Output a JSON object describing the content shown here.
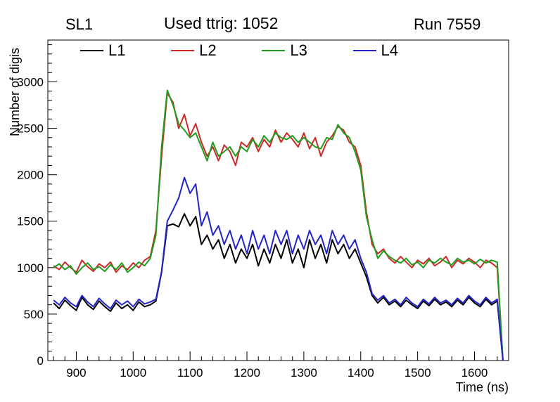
{
  "header": {
    "left_title": "SL1",
    "center_title": "Used ttrig: 1052",
    "right_title": "Run 7559"
  },
  "axes": {
    "x_label": "Time (ns)",
    "y_label": "Number of digis",
    "xticks": [
      900,
      1000,
      1100,
      1200,
      1300,
      1400,
      1500,
      1600
    ],
    "yticks": [
      0,
      500,
      1000,
      1500,
      2000,
      2500,
      3000
    ],
    "xlim": [
      850,
      1660
    ],
    "ylim": [
      0,
      3450
    ]
  },
  "legend": [
    {
      "label": "L1",
      "color": "#000000"
    },
    {
      "label": "L2",
      "color": "#cc2a2a"
    },
    {
      "label": "L3",
      "color": "#1e9e1e"
    },
    {
      "label": "L4",
      "color": "#2424c8"
    }
  ],
  "chart_data": {
    "type": "line",
    "title": "Used ttrig: 1052",
    "xlabel": "Time (ns)",
    "ylabel": "Number of digis",
    "xlim": [
      850,
      1660
    ],
    "ylim": [
      0,
      3450
    ],
    "grid": false,
    "legend_position": "top-inside",
    "x": [
      860,
      870,
      880,
      890,
      900,
      910,
      920,
      930,
      940,
      950,
      960,
      970,
      980,
      990,
      1000,
      1010,
      1020,
      1030,
      1040,
      1050,
      1060,
      1070,
      1080,
      1090,
      1100,
      1110,
      1120,
      1130,
      1140,
      1150,
      1160,
      1170,
      1180,
      1190,
      1200,
      1210,
      1220,
      1230,
      1240,
      1250,
      1260,
      1270,
      1280,
      1290,
      1300,
      1310,
      1320,
      1330,
      1340,
      1350,
      1360,
      1370,
      1380,
      1390,
      1400,
      1410,
      1420,
      1430,
      1440,
      1450,
      1460,
      1470,
      1480,
      1490,
      1500,
      1510,
      1520,
      1530,
      1540,
      1550,
      1560,
      1570,
      1580,
      1590,
      1600,
      1610,
      1620,
      1630,
      1640,
      1650
    ],
    "series": [
      {
        "name": "L1",
        "color": "#000000",
        "values": [
          620,
          560,
          650,
          590,
          540,
          680,
          600,
          550,
          640,
          580,
          530,
          620,
          560,
          600,
          540,
          630,
          580,
          600,
          640,
          950,
          1450,
          1470,
          1440,
          1580,
          1450,
          1550,
          1250,
          1350,
          1200,
          1300,
          1100,
          1250,
          1050,
          1200,
          1100,
          1250,
          1020,
          1200,
          1050,
          1250,
          1100,
          1300,
          1050,
          1200,
          1000,
          1300,
          1100,
          1250,
          1050,
          1300,
          1150,
          1250,
          1100,
          1200,
          1050,
          900,
          700,
          620,
          680,
          600,
          640,
          580,
          650,
          600,
          560,
          640,
          590,
          660,
          600,
          630,
          580,
          650,
          600,
          680,
          620,
          580,
          660,
          600,
          640,
          0
        ]
      },
      {
        "name": "L2",
        "color": "#cc2a2a",
        "values": [
          1020,
          980,
          1060,
          1000,
          950,
          1080,
          1010,
          960,
          1040,
          1000,
          1060,
          950,
          1020,
          980,
          1050,
          1000,
          1080,
          1120,
          1400,
          2200,
          2880,
          2780,
          2500,
          2650,
          2420,
          2550,
          2350,
          2200,
          2300,
          2150,
          2320,
          2250,
          2100,
          2350,
          2300,
          2400,
          2250,
          2380,
          2300,
          2480,
          2350,
          2450,
          2380,
          2300,
          2450,
          2280,
          2400,
          2200,
          2350,
          2420,
          2520,
          2480,
          2350,
          2300,
          2100,
          1600,
          1250,
          1150,
          1200,
          1100,
          1050,
          1120,
          1060,
          1000,
          1080,
          1040,
          1100,
          1020,
          1060,
          1120,
          1000,
          1080,
          1040,
          1100,
          1060,
          1000,
          1080,
          1050,
          1000,
          0
        ]
      },
      {
        "name": "L3",
        "color": "#1e9e1e",
        "values": [
          1000,
          1040,
          980,
          1020,
          930,
          1000,
          1050,
          980,
          1010,
          960,
          1030,
          980,
          1050,
          950,
          1000,
          1060,
          1020,
          1100,
          1350,
          2300,
          2910,
          2750,
          2550,
          2480,
          2400,
          2450,
          2300,
          2150,
          2350,
          2200,
          2250,
          2300,
          2200,
          2300,
          2250,
          2380,
          2300,
          2420,
          2350,
          2450,
          2400,
          2380,
          2420,
          2350,
          2400,
          2350,
          2300,
          2280,
          2400,
          2380,
          2540,
          2450,
          2400,
          2250,
          2050,
          1550,
          1300,
          1100,
          1180,
          1120,
          1080,
          1050,
          1100,
          1030,
          1060,
          1000,
          1080,
          1050,
          1100,
          1060,
          1030,
          1100,
          1060,
          1080,
          1040,
          1090,
          1050,
          1080,
          1060,
          0
        ]
      },
      {
        "name": "L4",
        "color": "#2424c8",
        "values": [
          650,
          600,
          680,
          620,
          580,
          700,
          630,
          580,
          670,
          610,
          560,
          650,
          600,
          640,
          580,
          660,
          610,
          630,
          660,
          960,
          1500,
          1620,
          1750,
          1970,
          1800,
          1900,
          1450,
          1600,
          1350,
          1450,
          1250,
          1400,
          1200,
          1350,
          1150,
          1400,
          1200,
          1350,
          1150,
          1400,
          1250,
          1400,
          1150,
          1350,
          1200,
          1400,
          1250,
          1350,
          1150,
          1400,
          1250,
          1350,
          1200,
          1300,
          1100,
          950,
          720,
          650,
          700,
          620,
          660,
          600,
          680,
          620,
          580,
          660,
          610,
          680,
          620,
          650,
          600,
          670,
          620,
          700,
          640,
          600,
          680,
          620,
          660,
          0
        ]
      }
    ]
  }
}
